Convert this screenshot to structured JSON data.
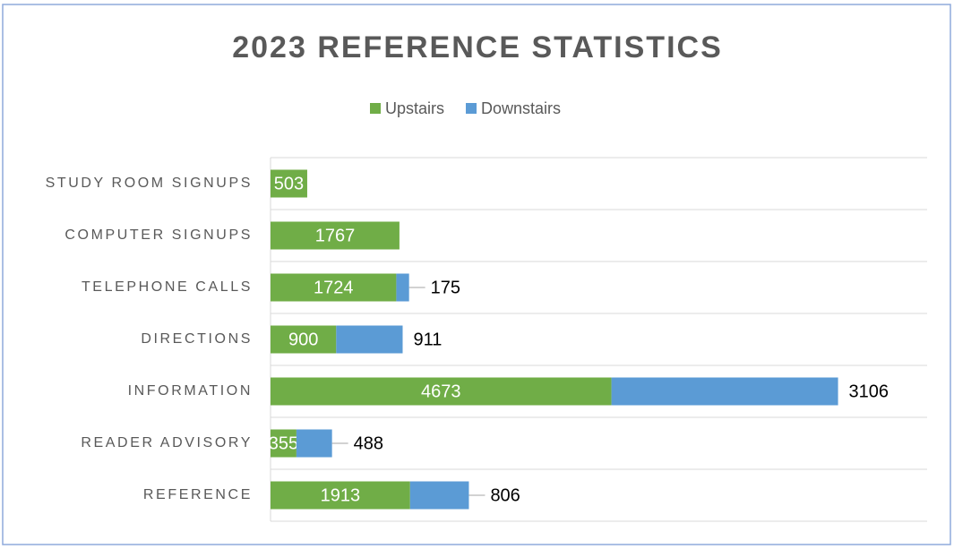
{
  "chart_data": {
    "type": "stacked-barh",
    "title": "2023 REFERENCE  STATISTICS",
    "categories": [
      "STUDY ROOM SIGNUPS",
      "COMPUTER SIGNUPS",
      "TELEPHONE CALLS",
      "DIRECTIONS",
      "INFORMATION",
      "READER ADVISORY",
      "REFERENCE"
    ],
    "series": [
      {
        "name": "Upstairs",
        "color": "#70ad47",
        "values": [
          503,
          1767,
          1724,
          900,
          4673,
          355,
          1913
        ]
      },
      {
        "name": "Downstairs",
        "color": "#5b9bd5",
        "values": [
          null,
          null,
          175,
          911,
          3106,
          488,
          806
        ]
      }
    ],
    "xlim": [
      0,
      9000
    ],
    "legend": "top"
  }
}
